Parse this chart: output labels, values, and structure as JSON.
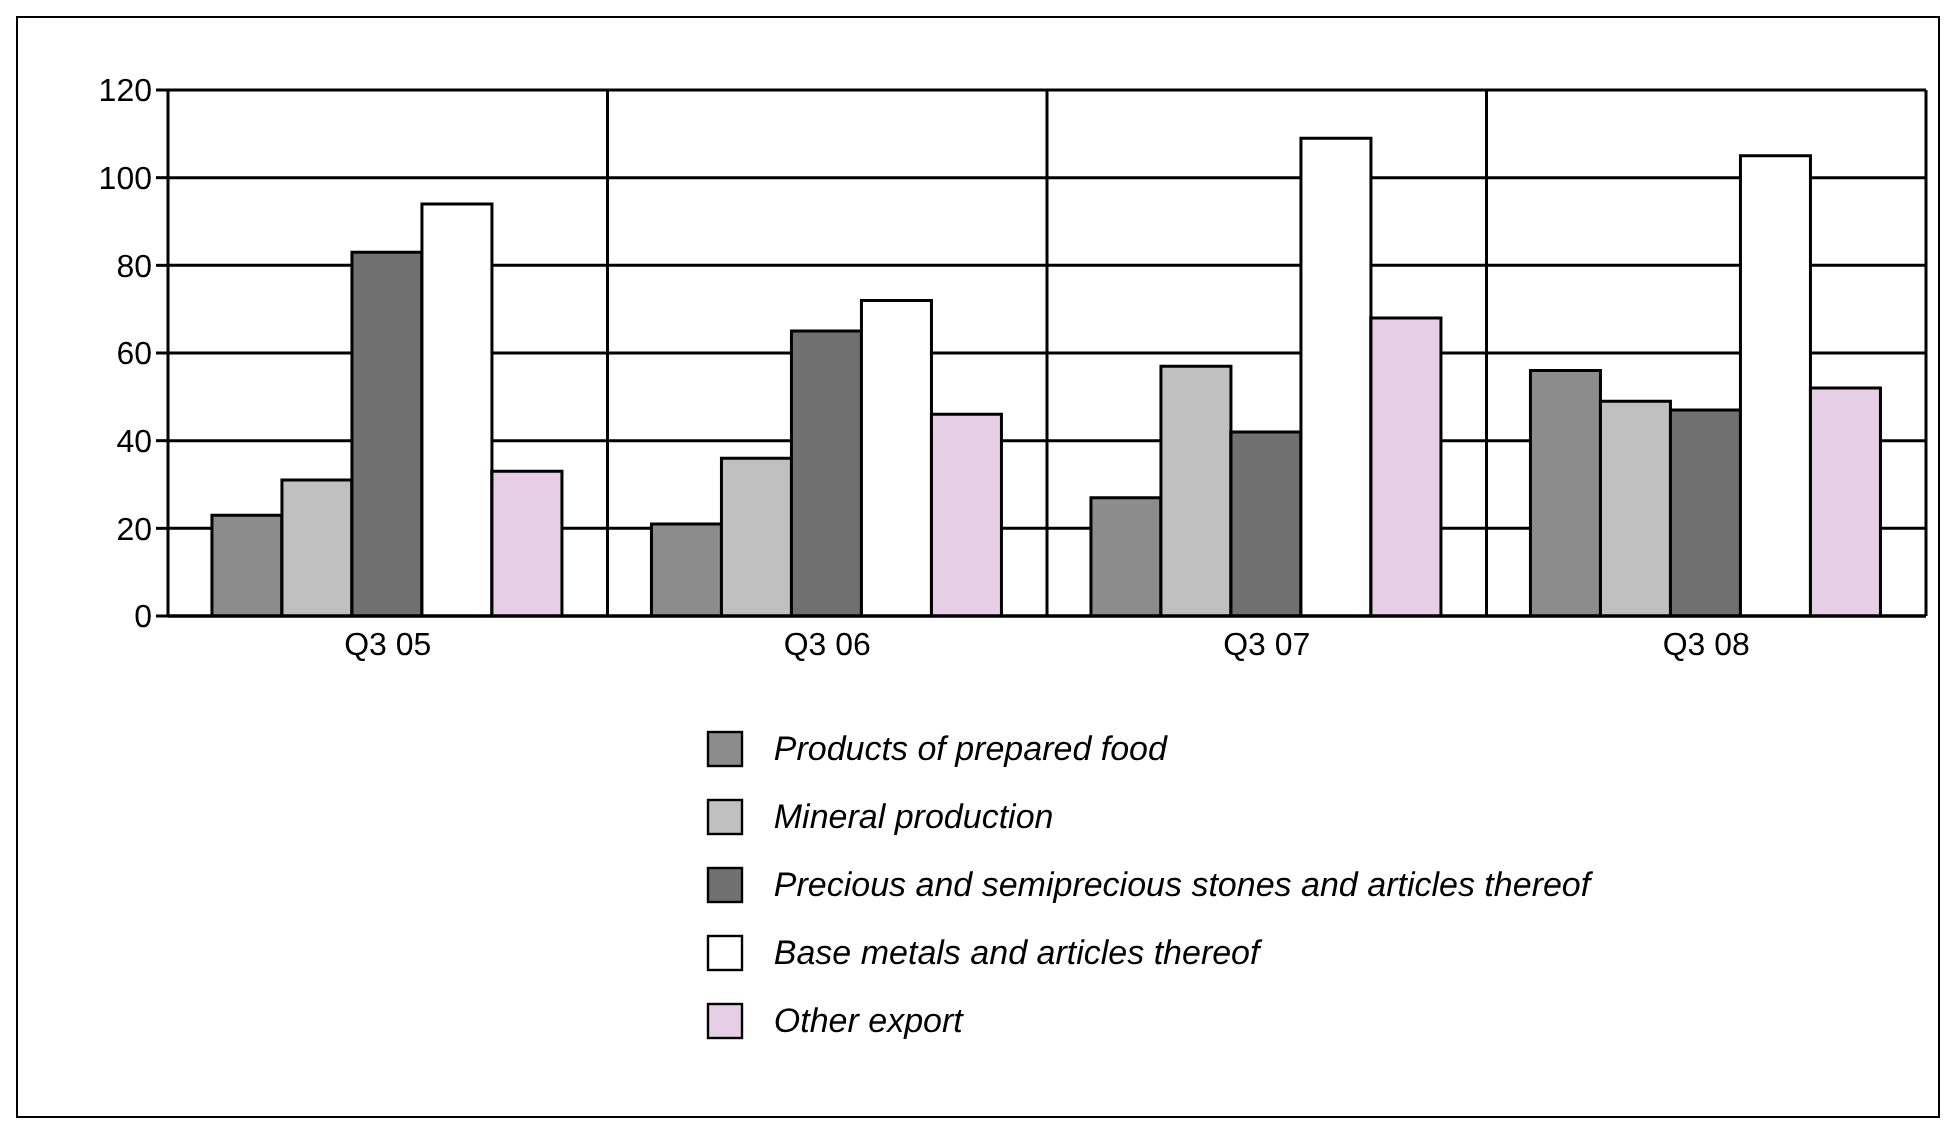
{
  "chart_data": {
    "type": "bar",
    "categories": [
      "Q3 05",
      "Q3 06",
      "Q3 07",
      "Q3 08"
    ],
    "series": [
      {
        "name": "Products of prepared food",
        "color": "#8c8c8c",
        "values": [
          23,
          21,
          27,
          56
        ]
      },
      {
        "name": "Mineral production",
        "color": "#c0c0c0",
        "values": [
          31,
          36,
          57,
          49
        ]
      },
      {
        "name": "Precious and semiprecious stones and articles thereof",
        "color": "#707070",
        "values": [
          83,
          65,
          42,
          47
        ]
      },
      {
        "name": "Base metals and articles thereof",
        "color": "#ffffff",
        "values": [
          94,
          72,
          109,
          105
        ]
      },
      {
        "name": "Other export",
        "color": "#e6cfe6",
        "values": [
          33,
          46,
          68,
          52
        ]
      }
    ],
    "ylim": [
      0,
      120
    ],
    "yticks": [
      0,
      20,
      40,
      60,
      80,
      100,
      120
    ],
    "grid": true,
    "legend": "bottom"
  }
}
